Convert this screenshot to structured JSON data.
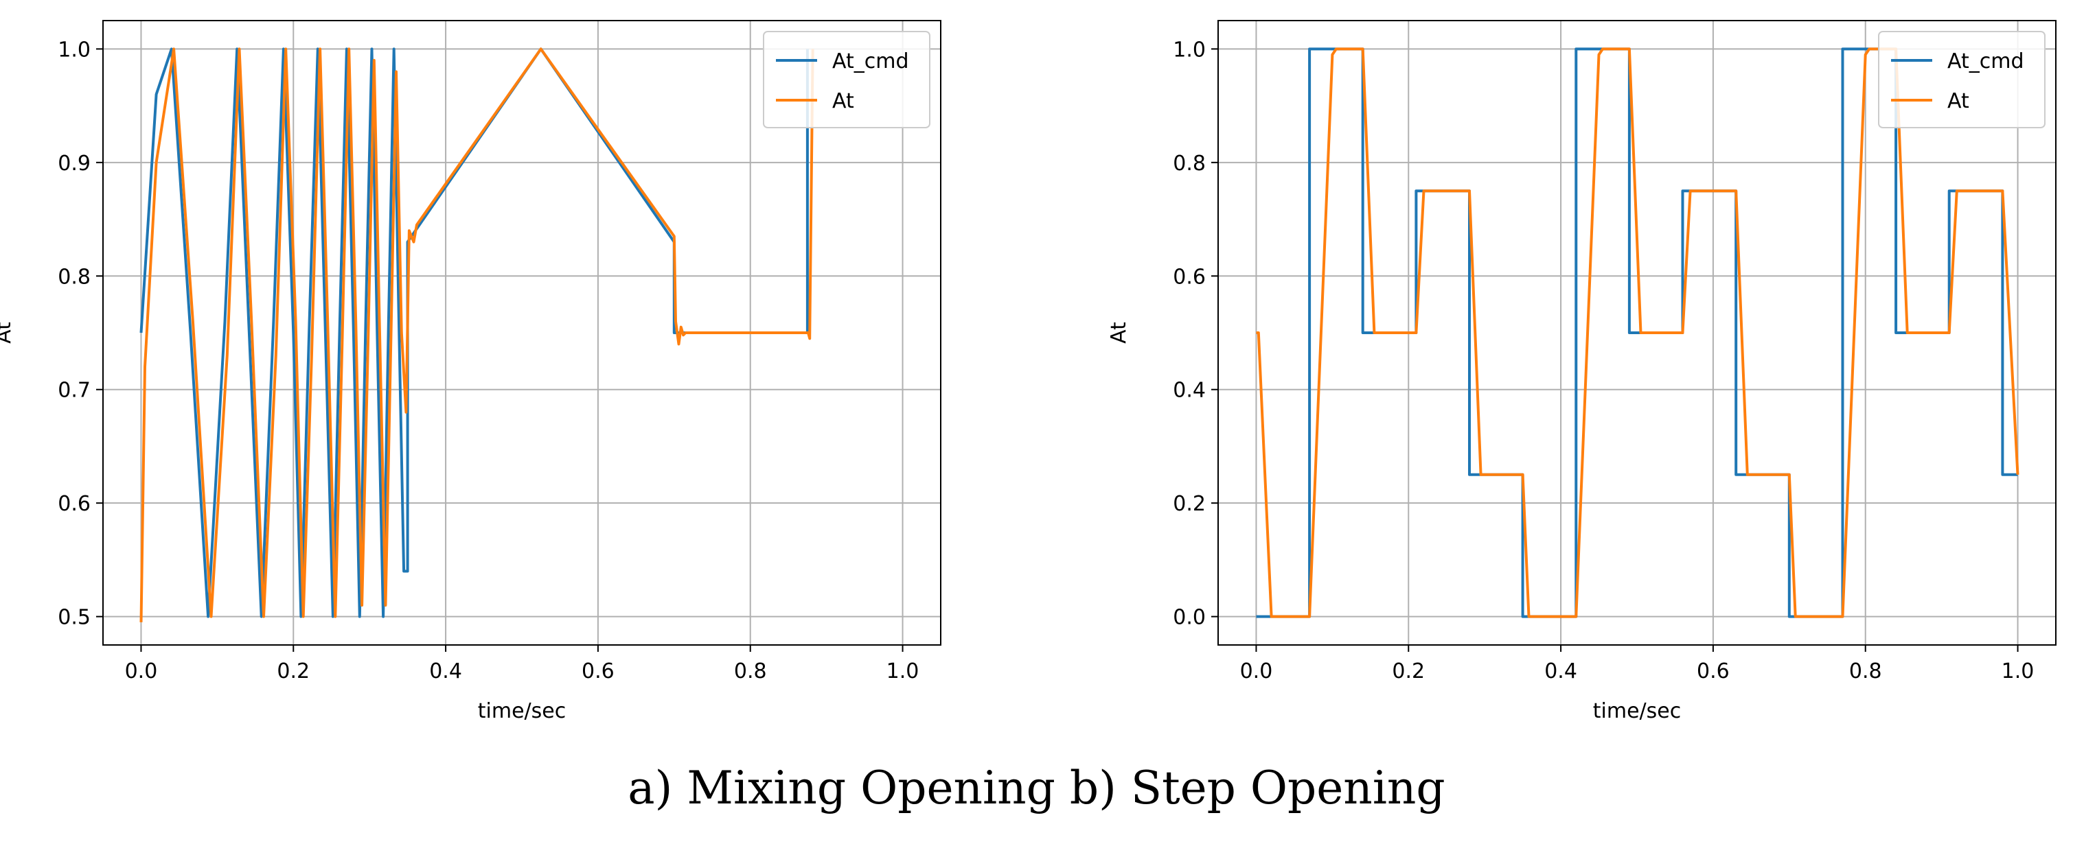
{
  "caption": "a) Mixing Opening b) Step Opening",
  "colors": {
    "cmd": "#1f77b4",
    "actual": "#ff7f0e",
    "grid": "#b0b0b0"
  },
  "chart_data": [
    {
      "type": "line",
      "xlabel": "time/sec",
      "ylabel": "At",
      "xlim": [
        -0.05,
        1.05
      ],
      "ylim": [
        0.475,
        1.025
      ],
      "xticks": [
        0.0,
        0.2,
        0.4,
        0.6,
        0.8,
        1.0
      ],
      "xtick_labels": [
        "0.0",
        "0.2",
        "0.4",
        "0.6",
        "0.8",
        "1.0"
      ],
      "yticks": [
        0.5,
        0.6,
        0.7,
        0.8,
        0.9,
        1.0
      ],
      "ytick_labels": [
        "0.5",
        "0.6",
        "0.7",
        "0.8",
        "0.9",
        "1.0"
      ],
      "grid": true,
      "legend": "top-right",
      "series": [
        {
          "name": "At_cmd",
          "color": "#1f77b4",
          "x": [
            0.0,
            0.02,
            0.04,
            0.065,
            0.088,
            0.11,
            0.126,
            0.142,
            0.158,
            0.174,
            0.187,
            0.2,
            0.21,
            0.221,
            0.232,
            0.242,
            0.252,
            0.261,
            0.27,
            0.279,
            0.287,
            0.295,
            0.303,
            0.31,
            0.318,
            0.325,
            0.332,
            0.338,
            0.345,
            0.35,
            0.35,
            0.525,
            0.7,
            0.7,
            0.875,
            0.875
          ],
          "y": [
            0.75,
            0.96,
            1.0,
            0.75,
            0.5,
            0.76,
            1.0,
            0.75,
            0.5,
            0.76,
            1.0,
            0.75,
            0.5,
            0.76,
            1.0,
            0.75,
            0.5,
            0.76,
            1.0,
            0.75,
            0.5,
            0.76,
            1.0,
            0.75,
            0.5,
            0.76,
            1.0,
            0.78,
            0.54,
            0.54,
            0.83,
            1.0,
            0.83,
            0.75,
            0.75,
            1.0
          ]
        },
        {
          "name": "At",
          "color": "#ff7f0e",
          "x": [
            0.0,
            0.005,
            0.02,
            0.043,
            0.068,
            0.092,
            0.113,
            0.129,
            0.145,
            0.161,
            0.177,
            0.19,
            0.203,
            0.213,
            0.224,
            0.235,
            0.245,
            0.255,
            0.264,
            0.273,
            0.282,
            0.29,
            0.298,
            0.306,
            0.313,
            0.321,
            0.328,
            0.335,
            0.342,
            0.348,
            0.352,
            0.358,
            0.362,
            0.525,
            0.7,
            0.702,
            0.706,
            0.709,
            0.712,
            0.715,
            0.876,
            0.878,
            0.882
          ],
          "y": [
            0.495,
            0.72,
            0.9,
            1.0,
            0.76,
            0.5,
            0.73,
            1.0,
            0.76,
            0.5,
            0.73,
            1.0,
            0.76,
            0.5,
            0.73,
            1.0,
            0.76,
            0.5,
            0.74,
            1.0,
            0.76,
            0.51,
            0.74,
            0.99,
            0.76,
            0.51,
            0.74,
            0.98,
            0.75,
            0.68,
            0.84,
            0.83,
            0.845,
            1.0,
            0.835,
            0.76,
            0.74,
            0.755,
            0.748,
            0.75,
            0.75,
            0.745,
            1.0
          ]
        }
      ]
    },
    {
      "type": "line",
      "xlabel": "time/sec",
      "ylabel": "At",
      "xlim": [
        -0.05,
        1.05
      ],
      "ylim": [
        -0.05,
        1.05
      ],
      "xticks": [
        0.0,
        0.2,
        0.4,
        0.6,
        0.8,
        1.0
      ],
      "xtick_labels": [
        "0.0",
        "0.2",
        "0.4",
        "0.6",
        "0.8",
        "1.0"
      ],
      "yticks": [
        0.0,
        0.2,
        0.4,
        0.6,
        0.8,
        1.0
      ],
      "ytick_labels": [
        "0.0",
        "0.2",
        "0.4",
        "0.6",
        "0.8",
        "1.0"
      ],
      "grid": true,
      "legend": "top-right",
      "series": [
        {
          "name": "At_cmd",
          "color": "#1f77b4",
          "x": [
            0.0,
            0.07,
            0.07,
            0.14,
            0.14,
            0.21,
            0.21,
            0.28,
            0.28,
            0.35,
            0.35,
            0.42,
            0.42,
            0.49,
            0.49,
            0.56,
            0.56,
            0.63,
            0.63,
            0.7,
            0.7,
            0.77,
            0.77,
            0.84,
            0.84,
            0.91,
            0.91,
            0.98,
            0.98,
            1.0
          ],
          "y": [
            0.0,
            0.0,
            1.0,
            1.0,
            0.5,
            0.5,
            0.75,
            0.75,
            0.25,
            0.25,
            0.0,
            0.0,
            1.0,
            1.0,
            0.5,
            0.5,
            0.75,
            0.75,
            0.25,
            0.25,
            0.0,
            0.0,
            1.0,
            1.0,
            0.5,
            0.5,
            0.75,
            0.75,
            0.25,
            0.25
          ]
        },
        {
          "name": "At",
          "color": "#ff7f0e",
          "x": [
            0.0,
            0.003,
            0.02,
            0.07,
            0.1,
            0.105,
            0.14,
            0.155,
            0.21,
            0.22,
            0.28,
            0.295,
            0.35,
            0.358,
            0.42,
            0.45,
            0.455,
            0.49,
            0.505,
            0.56,
            0.57,
            0.63,
            0.645,
            0.7,
            0.708,
            0.77,
            0.8,
            0.805,
            0.84,
            0.855,
            0.91,
            0.92,
            0.98,
            1.0
          ],
          "y": [
            0.5,
            0.5,
            0.0,
            0.0,
            0.99,
            1.0,
            1.0,
            0.5,
            0.5,
            0.75,
            0.75,
            0.25,
            0.25,
            0.0,
            0.0,
            0.99,
            1.0,
            1.0,
            0.5,
            0.5,
            0.75,
            0.75,
            0.25,
            0.25,
            0.0,
            0.0,
            0.99,
            1.0,
            1.0,
            0.5,
            0.5,
            0.75,
            0.75,
            0.25
          ]
        }
      ]
    }
  ]
}
